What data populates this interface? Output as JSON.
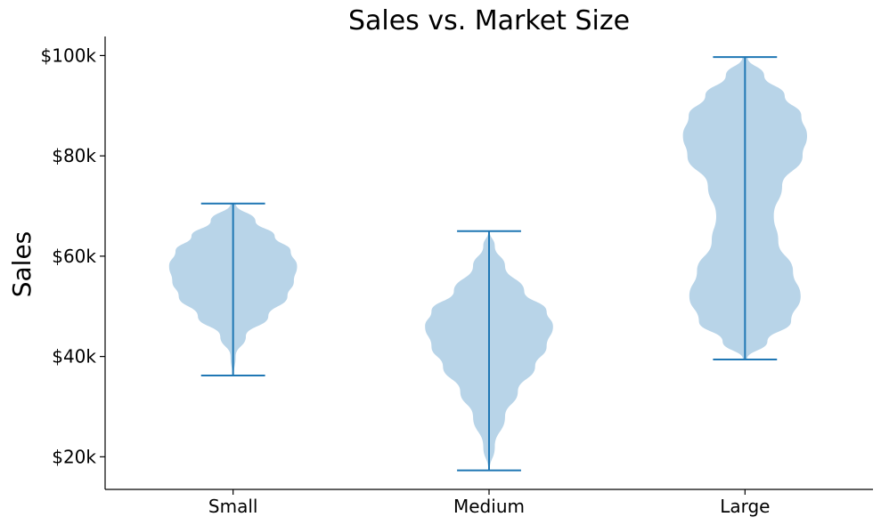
{
  "chart_data": {
    "type": "violin",
    "title": "Sales vs. Market Size",
    "xlabel": "",
    "ylabel": "Sales",
    "categories": [
      "Small",
      "Medium",
      "Large"
    ],
    "ylim": [
      13500,
      103800
    ],
    "yticks": [
      20000,
      40000,
      60000,
      80000,
      100000
    ],
    "ytick_labels": [
      "$20k",
      "$40k",
      "$60k",
      "$80k",
      "$100k"
    ],
    "violin_color": "#b8d4e8",
    "line_color": "#1f77b4",
    "grid": false,
    "violins": [
      {
        "category": "Small",
        "min": 36200,
        "max": 70500,
        "profile": [
          [
            36200,
            0.01
          ],
          [
            40000,
            0.04
          ],
          [
            44000,
            0.2
          ],
          [
            48000,
            0.55
          ],
          [
            52000,
            0.85
          ],
          [
            55000,
            0.95
          ],
          [
            58000,
            1.0
          ],
          [
            61000,
            0.9
          ],
          [
            64000,
            0.65
          ],
          [
            67000,
            0.35
          ],
          [
            70500,
            0.04
          ]
        ]
      },
      {
        "category": "Medium",
        "min": 17300,
        "max": 65000,
        "profile": [
          [
            17300,
            0.01
          ],
          [
            22000,
            0.09
          ],
          [
            28000,
            0.25
          ],
          [
            33000,
            0.45
          ],
          [
            38000,
            0.72
          ],
          [
            42000,
            0.9
          ],
          [
            46000,
            1.0
          ],
          [
            49000,
            0.9
          ],
          [
            53000,
            0.55
          ],
          [
            58000,
            0.25
          ],
          [
            62000,
            0.09
          ],
          [
            65000,
            0.01
          ]
        ]
      },
      {
        "category": "Large",
        "min": 39400,
        "max": 99700,
        "profile": [
          [
            39400,
            0.03
          ],
          [
            43000,
            0.35
          ],
          [
            47000,
            0.72
          ],
          [
            52000,
            0.87
          ],
          [
            57000,
            0.75
          ],
          [
            63000,
            0.52
          ],
          [
            68000,
            0.45
          ],
          [
            74000,
            0.58
          ],
          [
            80000,
            0.9
          ],
          [
            84000,
            0.97
          ],
          [
            88000,
            0.88
          ],
          [
            92000,
            0.62
          ],
          [
            96000,
            0.3
          ],
          [
            99700,
            0.04
          ]
        ]
      }
    ]
  }
}
